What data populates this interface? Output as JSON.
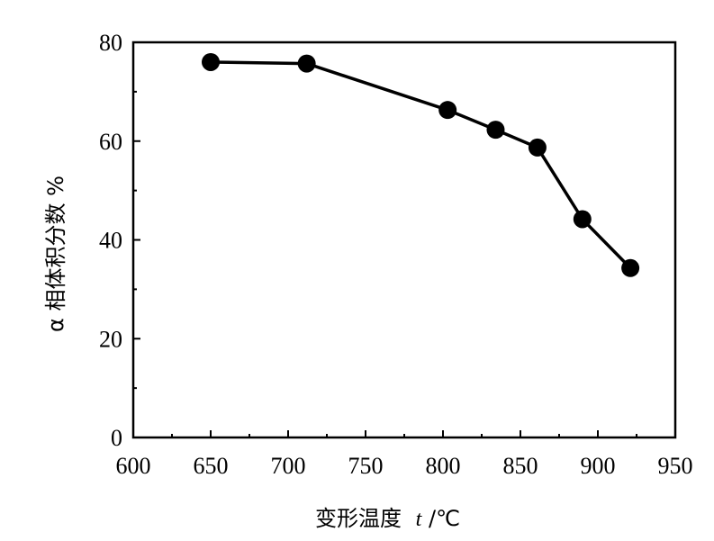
{
  "chart_data": {
    "type": "line",
    "title": "",
    "xlabel": "变形温度",
    "xlabel_symbol": "t",
    "xlabel_unit": "/℃",
    "ylabel": "α 相体积分数 %",
    "xlim": [
      600,
      950
    ],
    "ylim": [
      0,
      80
    ],
    "x_ticks": [
      600,
      650,
      700,
      750,
      800,
      850,
      900,
      950
    ],
    "y_ticks": [
      0,
      20,
      40,
      60,
      80
    ],
    "grid": false,
    "legend": "none",
    "series": [
      {
        "x": [
          650,
          712,
          803,
          834,
          861,
          890,
          921
        ],
        "y": [
          76,
          75.7,
          66.3,
          62.3,
          58.7,
          44.2,
          34.3
        ]
      }
    ],
    "colors": {
      "line": "#000000",
      "marker": "#000000",
      "axes": "#000000"
    }
  }
}
